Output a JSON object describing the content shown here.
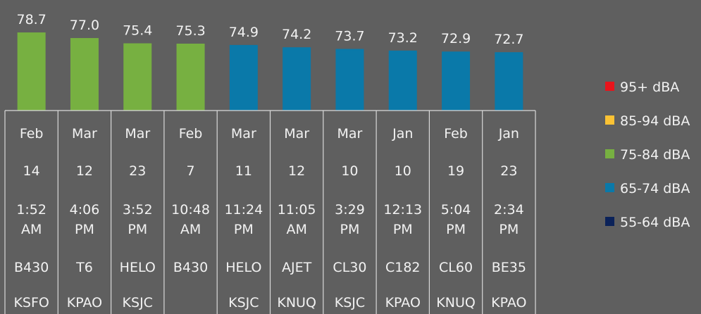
{
  "chart_data": {
    "type": "bar",
    "values": [
      78.7,
      77.0,
      75.4,
      75.3,
      74.9,
      74.2,
      73.7,
      73.2,
      72.9,
      72.7
    ],
    "value_labels": [
      "78.7",
      "77.0",
      "75.4",
      "75.3",
      "74.9",
      "74.2",
      "73.7",
      "73.2",
      "72.9",
      "72.7"
    ],
    "colors": [
      "#77b041",
      "#77b041",
      "#77b041",
      "#77b041",
      "#0a79a9",
      "#0a79a9",
      "#0a79a9",
      "#0a79a9",
      "#0a79a9",
      "#0a79a9"
    ],
    "ylim": [
      55,
      80
    ],
    "legend": [
      {
        "name": "95+ dBA",
        "color": "#e8141b"
      },
      {
        "name": "85-94 dBA",
        "color": "#fbc234"
      },
      {
        "name": "75-84 dBA",
        "color": "#77b041"
      },
      {
        "name": "65-74 dBA",
        "color": "#0a79a9"
      },
      {
        "name": "55-64 dBA",
        "color": "#0b2259"
      }
    ],
    "table": [
      [
        "Feb",
        "Mar",
        "Mar",
        "Feb",
        "Mar",
        "Mar",
        "Mar",
        "Jan",
        "Feb",
        "Jan"
      ],
      [
        "14",
        "12",
        "23",
        "7",
        "11",
        "12",
        "10",
        "10",
        "19",
        "23"
      ],
      [
        "1:52 AM",
        "4:06 PM",
        "3:52 PM",
        "10:48 AM",
        "11:24 PM",
        "11:05 AM",
        "3:29 PM",
        "12:13 PM",
        "5:04 PM",
        "2:34 PM"
      ],
      [
        "B430",
        "T6",
        "HELO",
        "B430",
        "HELO",
        "AJET",
        "CL30",
        "C182",
        "CL60",
        "BE35"
      ],
      [
        "KSFO",
        "KPAO",
        "KSJC",
        null,
        "KSJC",
        "KNUQ",
        "KSJC",
        "KPAO",
        "KNUQ",
        "KPAO"
      ]
    ]
  }
}
